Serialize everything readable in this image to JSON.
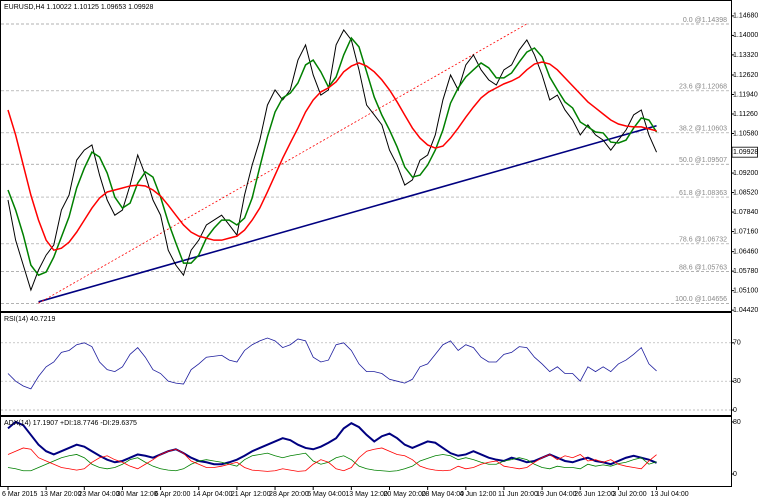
{
  "chart_data": [
    {
      "type": "line",
      "title": "EURUSD,H4 1.10022 1.10125 1.09653 1.09928",
      "categories": [
        "6 Mar 2015",
        null,
        null,
        null,
        null,
        "13 Mar 20:00",
        null,
        null,
        null,
        null,
        "23 Mar 04:00",
        null,
        null,
        null,
        null,
        "30 Mar 12:00",
        null,
        null,
        null,
        null,
        "6 Apr 20:00",
        null,
        null,
        null,
        null,
        "14 Apr 04:00",
        null,
        null,
        null,
        null,
        "21 Apr 12:00",
        null,
        null,
        null,
        null,
        "28 Apr 20:00",
        null,
        null,
        null,
        null,
        "6 May 04:00",
        null,
        null,
        null,
        null,
        "13 May 12:00",
        null,
        null,
        null,
        null,
        "20 May 20:00",
        null,
        null,
        null,
        null,
        "28 May 04:00",
        null,
        null,
        null,
        null,
        "4 Jun 12:00",
        null,
        null,
        null,
        null,
        "11 Jun 20:00",
        null,
        null,
        null,
        null,
        "19 Jun 04:00",
        null,
        null,
        null,
        null,
        "26 Jun 12:00",
        null,
        null,
        null,
        null,
        "3 Jul 20:00",
        null,
        null,
        null,
        null,
        "13 Jul 04:00"
      ],
      "series": [
        {
          "color": "#000000",
          "width": 1,
          "values": [
            1.0826,
            1.0686,
            1.0599,
            1.0512,
            1.0582,
            1.0634,
            1.0669,
            1.0791,
            1.0843,
            1.0965,
            1.1,
            1.1018,
            1.0913,
            1.0826,
            1.0773,
            1.0791,
            1.0878,
            1.0983,
            1.0913,
            1.0826,
            1.0773,
            1.0651,
            1.0599,
            1.0564,
            1.0651,
            1.0686,
            1.0739,
            1.0756,
            1.0773,
            1.0739,
            1.0704,
            1.0843,
            1.0948,
            1.1035,
            1.1157,
            1.121,
            1.1175,
            1.121,
            1.1314,
            1.1367,
            1.1262,
            1.1192,
            1.121,
            1.1367,
            1.1419,
            1.1384,
            1.128,
            1.1157,
            1.1123,
            1.1088,
            1.1,
            1.0948,
            1.0878,
            1.0896,
            1.0965,
            1.0983,
            1.1053,
            1.1175,
            1.1262,
            1.121,
            1.1297,
            1.1332,
            1.128,
            1.1245,
            1.1227,
            1.128,
            1.1297,
            1.1349,
            1.1384,
            1.1332,
            1.1262,
            1.1175,
            1.1192,
            1.114,
            1.1105,
            1.1053,
            1.1088,
            1.1053,
            1.1035,
            1.1,
            1.1035,
            1.107,
            1.1123,
            1.114,
            1.1053,
            1.09928
          ]
        },
        {
          "color": "#008000",
          "width": 1.5,
          "values": [
            1.0861,
            1.0791,
            1.0704,
            1.0599,
            1.0564,
            1.0575,
            1.0627,
            1.0697,
            1.0767,
            1.0868,
            1.0937,
            1.0993,
            1.0976,
            1.092,
            1.0836,
            1.0798,
            1.0815,
            1.0885,
            1.0924,
            1.0906,
            1.0836,
            1.0749,
            1.0676,
            1.0606,
            1.0606,
            1.0634,
            1.0693,
            1.0728,
            1.0756,
            1.0756,
            1.0739,
            1.0763,
            1.0833,
            1.0941,
            1.1046,
            1.1133,
            1.1182,
            1.1199,
            1.1234,
            1.1297,
            1.1314,
            1.1273,
            1.122,
            1.1255,
            1.1332,
            1.1391,
            1.136,
            1.1273,
            1.1185,
            1.1122,
            1.107,
            1.1011,
            1.0941,
            1.0906,
            1.0913,
            1.0948,
            1.1,
            1.107,
            1.1164,
            1.1217,
            1.1255,
            1.128,
            1.1304,
            1.1287,
            1.1252,
            1.1252,
            1.1269,
            1.1307,
            1.1342,
            1.1356,
            1.1325,
            1.1255,
            1.121,
            1.1168,
            1.1147,
            1.1098,
            1.1081,
            1.1063,
            1.106,
            1.1028,
            1.1025,
            1.1035,
            1.1077,
            1.1112,
            1.1105,
            1.1063
          ]
        },
        {
          "color": "#ff0000",
          "width": 1.5,
          "values": [
            1.114,
            1.1053,
            1.0948,
            1.0843,
            1.0756,
            1.0686,
            1.0651,
            1.0658,
            1.0679,
            1.0714,
            1.0756,
            1.0798,
            1.0833,
            1.0854,
            1.0861,
            1.0868,
            1.0875,
            1.0878,
            1.0875,
            1.0861,
            1.084,
            1.0808,
            1.0773,
            1.0739,
            1.0714,
            1.07,
            1.0693,
            1.0686,
            1.0686,
            1.0693,
            1.07,
            1.0721,
            1.0756,
            1.0798,
            1.0854,
            1.0913,
            1.0972,
            1.1025,
            1.1077,
            1.1133,
            1.1175,
            1.1203,
            1.1217,
            1.1238,
            1.1273,
            1.1293,
            1.1304,
            1.1293,
            1.1273,
            1.1245,
            1.121,
            1.1168,
            1.1122,
            1.1077,
            1.1042,
            1.1018,
            1.1007,
            1.1014,
            1.1042,
            1.1077,
            1.1115,
            1.115,
            1.1182,
            1.1203,
            1.1217,
            1.1231,
            1.1241,
            1.1255,
            1.128,
            1.13,
            1.1307,
            1.13,
            1.128,
            1.1252,
            1.1224,
            1.1196,
            1.1168,
            1.1147,
            1.1126,
            1.1105,
            1.1091,
            1.1084,
            1.1081,
            1.1081,
            1.1074,
            1.1067
          ]
        }
      ],
      "ylim": [
        1.0439,
        1.1513
      ],
      "yticks": [
        {
          "value": 1.1468,
          "label": "1.14680"
        },
        {
          "value": 1.14,
          "label": "1.14000"
        },
        {
          "value": 1.1332,
          "label": "1.13320"
        },
        {
          "value": 1.1262,
          "label": "1.12620"
        },
        {
          "value": 1.1194,
          "label": "1.11940"
        },
        {
          "value": 1.1126,
          "label": "1.11260"
        },
        {
          "value": 1.1058,
          "label": "1.10580"
        },
        {
          "value": 1.092,
          "label": "1.09200"
        },
        {
          "value": 1.0852,
          "label": "1.08520"
        },
        {
          "value": 1.0784,
          "label": "1.07840"
        },
        {
          "value": 1.0716,
          "label": "1.07160"
        },
        {
          "value": 1.0646,
          "label": "1.06460"
        },
        {
          "value": 1.0578,
          "label": "1.05780"
        },
        {
          "value": 1.051,
          "label": "1.05100"
        },
        {
          "value": 1.0442,
          "label": "1.04420"
        }
      ],
      "last_price": 1.09928,
      "levels": [
        {
          "value": 1.14398,
          "label": "0.0 @1.14398"
        },
        {
          "value": 1.12068,
          "label": "23.6 @1.12068"
        },
        {
          "value": 1.10603,
          "label": "38.2 @1.10603"
        },
        {
          "value": 1.09507,
          "label": "50.0 @1.09507"
        },
        {
          "value": 1.08363,
          "label": "61.8 @1.08363"
        },
        {
          "value": 1.06732,
          "label": "78.6 @1.06732"
        },
        {
          "value": 1.05763,
          "label": "88.6 @1.05763"
        },
        {
          "value": 1.04656,
          "label": "100.0 @1.04656"
        }
      ],
      "trendlines": [
        {
          "color": "#000080",
          "dashed": false,
          "points": [
            [
              4,
              1.0471
            ],
            [
              85,
              1.1085
            ]
          ]
        },
        {
          "color": "#ff0000",
          "dashed": true,
          "points": [
            [
              4,
              1.0466
            ],
            [
              68,
              1.144
            ]
          ]
        }
      ]
    },
    {
      "type": "line",
      "title": "RSI(14) 40.7219",
      "series": [
        {
          "color": "#1e1e9e",
          "width": 0.8,
          "values": [
            38,
            30,
            25,
            22,
            35,
            45,
            50,
            60,
            62,
            68,
            70,
            66,
            50,
            42,
            40,
            45,
            58,
            65,
            55,
            42,
            38,
            30,
            28,
            27,
            42,
            48,
            55,
            56,
            57,
            52,
            50,
            62,
            68,
            72,
            75,
            72,
            65,
            68,
            74,
            72,
            55,
            50,
            52,
            68,
            70,
            62,
            48,
            40,
            40,
            38,
            32,
            30,
            28,
            32,
            45,
            48,
            58,
            68,
            72,
            62,
            68,
            65,
            55,
            50,
            50,
            58,
            60,
            66,
            65,
            55,
            48,
            40,
            45,
            38,
            38,
            30,
            45,
            40,
            45,
            40,
            48,
            52,
            58,
            65,
            48,
            40.7219
          ]
        }
      ],
      "ylim": [
        0,
        100
      ],
      "yticks": [
        0,
        30,
        70
      ],
      "grid": true
    },
    {
      "type": "line",
      "title": "ADX(14) 17.1907 +DI:18.7746 -DI:29.6375",
      "series": [
        {
          "color": "#000080",
          "width": 2,
          "values": [
            70,
            80,
            75,
            60,
            45,
            35,
            30,
            35,
            40,
            45,
            42,
            35,
            28,
            22,
            18,
            20,
            25,
            30,
            28,
            25,
            30,
            35,
            38,
            32,
            25,
            20,
            18,
            15,
            15,
            18,
            22,
            28,
            35,
            40,
            45,
            50,
            55,
            52,
            45,
            40,
            38,
            42,
            48,
            55,
            70,
            78,
            72,
            60,
            50,
            58,
            62,
            55,
            45,
            40,
            45,
            50,
            48,
            40,
            32,
            28,
            30,
            35,
            30,
            25,
            22,
            20,
            25,
            22,
            18,
            20,
            25,
            30,
            25,
            20,
            18,
            22,
            25,
            20,
            18,
            15,
            20,
            25,
            28,
            25,
            22,
            17.1907
          ]
        },
        {
          "color": "#008000",
          "width": 0.8,
          "values": [
            10,
            8,
            5,
            5,
            10,
            15,
            20,
            25,
            28,
            30,
            25,
            15,
            10,
            8,
            10,
            15,
            22,
            25,
            18,
            12,
            8,
            6,
            5,
            8,
            15,
            20,
            22,
            20,
            18,
            15,
            12,
            22,
            28,
            30,
            32,
            28,
            25,
            28,
            30,
            32,
            20,
            15,
            18,
            25,
            28,
            22,
            12,
            8,
            6,
            5,
            4,
            5,
            8,
            12,
            20,
            24,
            28,
            30,
            28,
            22,
            25,
            22,
            18,
            15,
            15,
            20,
            22,
            25,
            22,
            15,
            10,
            8,
            12,
            10,
            10,
            8,
            15,
            12,
            14,
            12,
            16,
            18,
            22,
            25,
            15,
            18.7746
          ]
        },
        {
          "color": "#ff0000",
          "width": 0.8,
          "values": [
            30,
            35,
            40,
            38,
            25,
            20,
            15,
            10,
            8,
            6,
            8,
            18,
            25,
            28,
            22,
            18,
            12,
            8,
            15,
            22,
            30,
            35,
            38,
            32,
            20,
            15,
            10,
            10,
            12,
            15,
            18,
            10,
            6,
            5,
            4,
            5,
            8,
            6,
            4,
            5,
            15,
            22,
            18,
            8,
            5,
            10,
            25,
            35,
            38,
            40,
            35,
            30,
            28,
            22,
            12,
            8,
            6,
            5,
            6,
            12,
            8,
            10,
            15,
            18,
            20,
            12,
            10,
            8,
            10,
            18,
            25,
            30,
            22,
            28,
            25,
            30,
            20,
            22,
            18,
            22,
            15,
            12,
            10,
            8,
            20,
            29.6375
          ]
        }
      ],
      "ylim": [
        0,
        86
      ],
      "yticks": [
        0,
        80
      ]
    }
  ]
}
